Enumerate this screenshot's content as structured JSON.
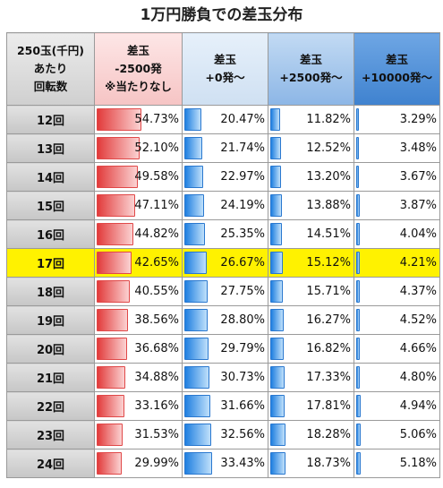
{
  "title": "1万円勝負での差玉分布",
  "header": {
    "col0": [
      "250玉(千円)",
      "あたり",
      "回転数"
    ],
    "col1": [
      "差玉",
      "-2500発",
      "※当たりなし"
    ],
    "col2": [
      "差玉",
      "+0発～"
    ],
    "col3": [
      "差玉",
      "+2500発～"
    ],
    "col4": [
      "差玉",
      "+10000発～"
    ]
  },
  "highlight_row": "17回",
  "colors": {
    "highlight": "#fff200",
    "red_bar": "#e23b3b",
    "blue_bar": "#1f7fe0"
  },
  "bar_max": [
    100,
    100,
    100,
    100
  ],
  "rows": [
    {
      "label": "12回",
      "values": [
        "54.73%",
        "20.47%",
        "11.82%",
        "3.29%"
      ],
      "nums": [
        54.73,
        20.47,
        11.82,
        3.29
      ]
    },
    {
      "label": "13回",
      "values": [
        "52.10%",
        "21.74%",
        "12.52%",
        "3.48%"
      ],
      "nums": [
        52.1,
        21.74,
        12.52,
        3.48
      ]
    },
    {
      "label": "14回",
      "values": [
        "49.58%",
        "22.97%",
        "13.20%",
        "3.67%"
      ],
      "nums": [
        49.58,
        22.97,
        13.2,
        3.67
      ]
    },
    {
      "label": "15回",
      "values": [
        "47.11%",
        "24.19%",
        "13.88%",
        "3.87%"
      ],
      "nums": [
        47.11,
        24.19,
        13.88,
        3.87
      ]
    },
    {
      "label": "16回",
      "values": [
        "44.82%",
        "25.35%",
        "14.51%",
        "4.04%"
      ],
      "nums": [
        44.82,
        25.35,
        14.51,
        4.04
      ]
    },
    {
      "label": "17回",
      "values": [
        "42.65%",
        "26.67%",
        "15.12%",
        "4.21%"
      ],
      "nums": [
        42.65,
        26.67,
        15.12,
        4.21
      ]
    },
    {
      "label": "18回",
      "values": [
        "40.55%",
        "27.75%",
        "15.71%",
        "4.37%"
      ],
      "nums": [
        40.55,
        27.75,
        15.71,
        4.37
      ]
    },
    {
      "label": "19回",
      "values": [
        "38.56%",
        "28.80%",
        "16.27%",
        "4.52%"
      ],
      "nums": [
        38.56,
        28.8,
        16.27,
        4.52
      ]
    },
    {
      "label": "20回",
      "values": [
        "36.68%",
        "29.79%",
        "16.82%",
        "4.66%"
      ],
      "nums": [
        36.68,
        29.79,
        16.82,
        4.66
      ]
    },
    {
      "label": "21回",
      "values": [
        "34.88%",
        "30.73%",
        "17.33%",
        "4.80%"
      ],
      "nums": [
        34.88,
        30.73,
        17.33,
        4.8
      ]
    },
    {
      "label": "22回",
      "values": [
        "33.16%",
        "31.66%",
        "17.81%",
        "4.94%"
      ],
      "nums": [
        33.16,
        31.66,
        17.81,
        4.94
      ]
    },
    {
      "label": "23回",
      "values": [
        "31.53%",
        "32.56%",
        "18.28%",
        "5.06%"
      ],
      "nums": [
        31.53,
        32.56,
        18.28,
        5.06
      ]
    },
    {
      "label": "24回",
      "values": [
        "29.99%",
        "33.43%",
        "18.73%",
        "5.18%"
      ],
      "nums": [
        29.99,
        33.43,
        18.73,
        5.18
      ]
    }
  ]
}
